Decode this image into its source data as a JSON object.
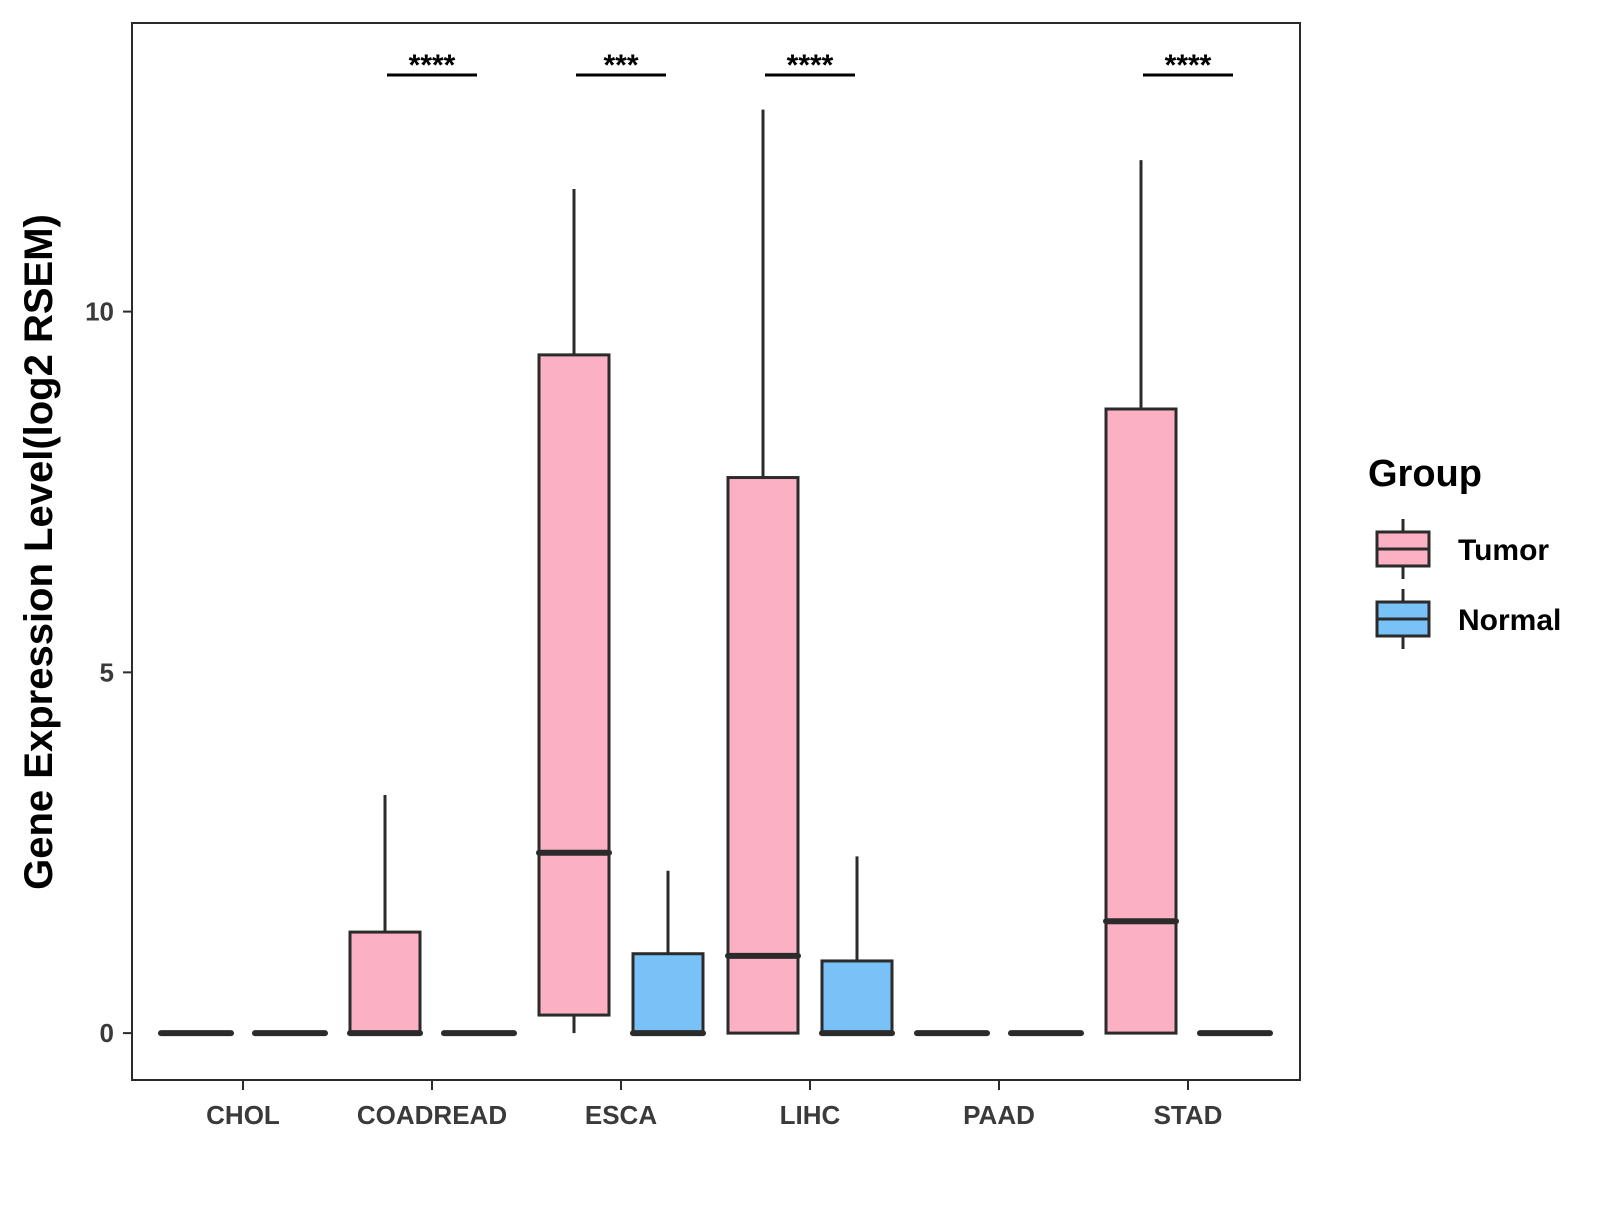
{
  "chart_data": {
    "type": "boxplot",
    "title": "",
    "xlabel": "",
    "ylabel": "Gene Expression Level(log2 RSEM)",
    "ylim": [
      -0.65,
      14.0
    ],
    "yticks": [
      0,
      5,
      10
    ],
    "categories": [
      "CHOL",
      "COADREAD",
      "ESCA",
      "LIHC",
      "PAAD",
      "STAD"
    ],
    "series": [
      {
        "name": "Tumor",
        "color": "#FBB0C3",
        "boxes": [
          {
            "category": "CHOL",
            "min": 0,
            "q1": 0,
            "median": 0,
            "q3": 0,
            "max": 0
          },
          {
            "category": "COADREAD",
            "min": 0,
            "q1": 0,
            "median": 0,
            "q3": 1.4,
            "max": 3.3
          },
          {
            "category": "ESCA",
            "min": 0,
            "q1": 0.25,
            "median": 2.5,
            "q3": 9.4,
            "max": 11.7
          },
          {
            "category": "LIHC",
            "min": 0,
            "q1": 0,
            "median": 1.07,
            "q3": 7.7,
            "max": 12.8
          },
          {
            "category": "PAAD",
            "min": 0,
            "q1": 0,
            "median": 0,
            "q3": 0,
            "max": 0
          },
          {
            "category": "STAD",
            "min": 0,
            "q1": 0,
            "median": 1.55,
            "q3": 8.65,
            "max": 12.1
          }
        ]
      },
      {
        "name": "Normal",
        "color": "#78C2F7",
        "boxes": [
          {
            "category": "CHOL",
            "min": 0,
            "q1": 0,
            "median": 0,
            "q3": 0,
            "max": 0
          },
          {
            "category": "COADREAD",
            "min": 0,
            "q1": 0,
            "median": 0,
            "q3": 0,
            "max": 0
          },
          {
            "category": "ESCA",
            "min": 0,
            "q1": 0,
            "median": 0,
            "q3": 1.1,
            "max": 2.25
          },
          {
            "category": "LIHC",
            "min": 0,
            "q1": 0,
            "median": 0,
            "q3": 1.0,
            "max": 2.45
          },
          {
            "category": "PAAD",
            "min": 0,
            "q1": 0,
            "median": 0,
            "q3": 0,
            "max": 0
          },
          {
            "category": "STAD",
            "min": 0,
            "q1": 0,
            "median": 0,
            "q3": 0,
            "max": 0
          }
        ]
      }
    ],
    "significance": [
      {
        "category": "COADREAD",
        "label": "****"
      },
      {
        "category": "ESCA",
        "label": "***"
      },
      {
        "category": "LIHC",
        "label": "****"
      },
      {
        "category": "STAD",
        "label": "****"
      }
    ],
    "legend": {
      "title": "Group",
      "position": "right",
      "items": [
        {
          "label": "Tumor",
          "color": "#FBB0C3"
        },
        {
          "label": "Normal",
          "color": "#78C2F7"
        }
      ]
    }
  }
}
